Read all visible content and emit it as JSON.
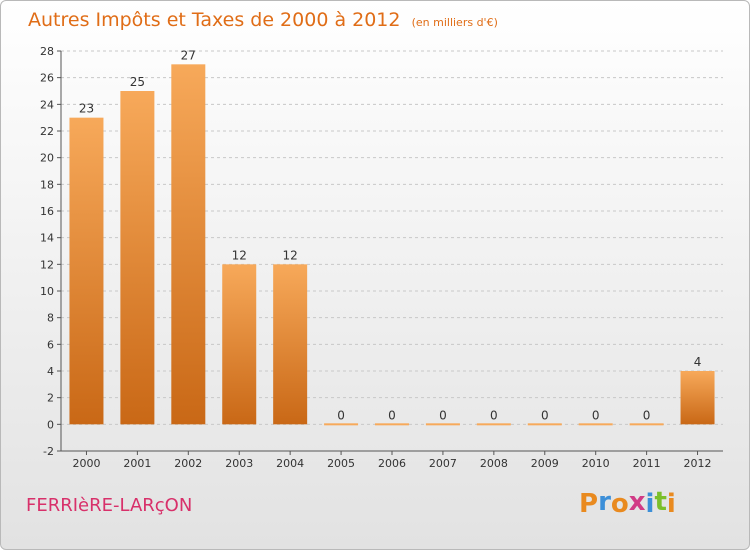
{
  "header": {
    "title": "Autres Impôts et Taxes de 2000 à 2012",
    "unit": "(en milliers d'€)"
  },
  "footer": {
    "commune": "FERRIèRE-LARçON",
    "logo_letters": [
      "P",
      "r",
      "o",
      "x",
      "i",
      "t",
      "i"
    ],
    "logo_colors": [
      "#e98a1f",
      "#3c8fd8",
      "#e98a1f",
      "#d13b86",
      "#3c8fd8",
      "#7bbf2a",
      "#e98a1f"
    ]
  },
  "colors": {
    "title": "#e06d17",
    "bar_light": "#f7a95a",
    "bar_dark": "#c96816",
    "axis": "#555555",
    "grid": "#c8c8c8",
    "commune": "#d8306a"
  },
  "chart_data": {
    "type": "bar",
    "title": "Autres Impôts et Taxes de 2000 à 2012",
    "subtitle": "(en milliers d'€)",
    "categories": [
      "2000",
      "2001",
      "2002",
      "2003",
      "2004",
      "2005",
      "2006",
      "2007",
      "2008",
      "2009",
      "2010",
      "2011",
      "2012"
    ],
    "values": [
      23,
      25,
      27,
      12,
      12,
      0,
      0,
      0,
      0,
      0,
      0,
      0,
      4
    ],
    "ylim": [
      -2,
      28
    ],
    "yticks": [
      -2,
      0,
      2,
      4,
      6,
      8,
      10,
      12,
      14,
      16,
      18,
      20,
      22,
      24,
      26,
      28
    ],
    "grid": true,
    "data_labels": true
  }
}
